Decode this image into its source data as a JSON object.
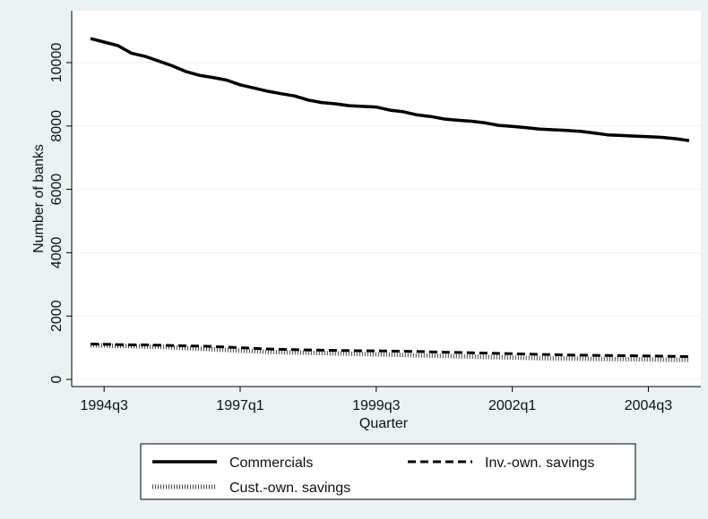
{
  "chart_data": {
    "type": "line",
    "xlabel": "Quarter",
    "ylabel": "Number of banks",
    "x_ticks": [
      "1994q3",
      "1997q1",
      "1999q3",
      "2002q1",
      "2004q3"
    ],
    "y_ticks": [
      0,
      2000,
      4000,
      6000,
      8000,
      10000
    ],
    "ylim": [
      0,
      11000
    ],
    "x": [
      "1994q2",
      "1994q3",
      "1994q4",
      "1995q1",
      "1995q2",
      "1995q3",
      "1995q4",
      "1996q1",
      "1996q2",
      "1996q3",
      "1996q4",
      "1997q1",
      "1997q2",
      "1997q3",
      "1997q4",
      "1998q1",
      "1998q2",
      "1998q3",
      "1998q4",
      "1999q1",
      "1999q2",
      "1999q3",
      "1999q4",
      "2000q1",
      "2000q2",
      "2000q3",
      "2000q4",
      "2001q1",
      "2001q2",
      "2001q3",
      "2001q4",
      "2002q1",
      "2002q2",
      "2002q3",
      "2002q4",
      "2003q1",
      "2003q2",
      "2003q3",
      "2003q4",
      "2004q1",
      "2004q2",
      "2004q3",
      "2004q4",
      "2005q1",
      "2005q2"
    ],
    "grid": true,
    "legend_position": "bottom",
    "series": [
      {
        "name": "Commercials",
        "style": "solid",
        "values": [
          10760,
          10650,
          10540,
          10300,
          10200,
          10050,
          9900,
          9720,
          9600,
          9530,
          9450,
          9300,
          9200,
          9100,
          9020,
          8950,
          8820,
          8740,
          8700,
          8640,
          8620,
          8600,
          8500,
          8450,
          8350,
          8300,
          8220,
          8180,
          8150,
          8100,
          8020,
          7990,
          7950,
          7900,
          7880,
          7860,
          7830,
          7780,
          7720,
          7700,
          7680,
          7660,
          7640,
          7600,
          7540
        ]
      },
      {
        "name": "Inv.-own. savings",
        "style": "dashed",
        "values": [
          1120,
          1110,
          1100,
          1090,
          1090,
          1080,
          1070,
          1060,
          1050,
          1040,
          1020,
          1000,
          980,
          960,
          950,
          940,
          930,
          920,
          915,
          910,
          905,
          900,
          895,
          890,
          880,
          870,
          860,
          850,
          840,
          830,
          820,
          810,
          800,
          790,
          780,
          770,
          765,
          760,
          755,
          750,
          745,
          740,
          735,
          725,
          720
        ]
      },
      {
        "name": "Cust.-own. savings",
        "style": "dotted",
        "values": [
          1080,
          1070,
          1060,
          1050,
          1040,
          1030,
          1010,
          990,
          970,
          950,
          930,
          910,
          890,
          870,
          860,
          850,
          840,
          830,
          820,
          810,
          800,
          790,
          780,
          770,
          760,
          750,
          740,
          730,
          720,
          710,
          700,
          690,
          680,
          670,
          665,
          660,
          655,
          650,
          645,
          640,
          635,
          630,
          625,
          620,
          615
        ]
      }
    ]
  }
}
